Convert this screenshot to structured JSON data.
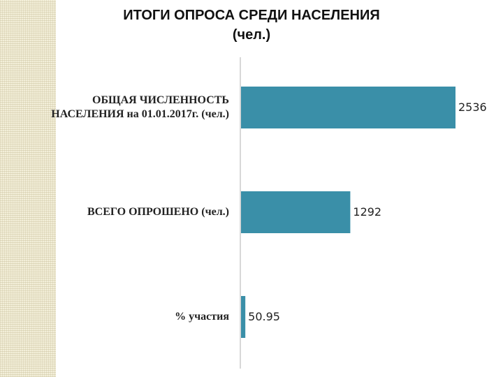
{
  "chart_data": {
    "type": "bar",
    "orientation": "horizontal",
    "title_lines": [
      "ИТОГИ ОПРОСА СРЕДИ НАСЕЛЕНИЯ",
      "(чел.)"
    ],
    "categories": [
      {
        "lines": [
          "ОБЩАЯ ЧИСЛЕННОСТЬ",
          "НАСЕЛЕНИЯ на 01.01.2017г. (чел.)"
        ]
      },
      {
        "lines": [
          "ВСЕГО ОПРОШЕНО (чел.)"
        ]
      },
      {
        "lines": [
          "% участия"
        ]
      }
    ],
    "values": [
      2536,
      1292,
      50.95
    ],
    "value_labels": [
      "2536",
      "1292",
      "50.95"
    ],
    "xlim": [
      0,
      2536
    ],
    "bar_color": "#3a8fa8",
    "grid": false,
    "legend": "none"
  }
}
